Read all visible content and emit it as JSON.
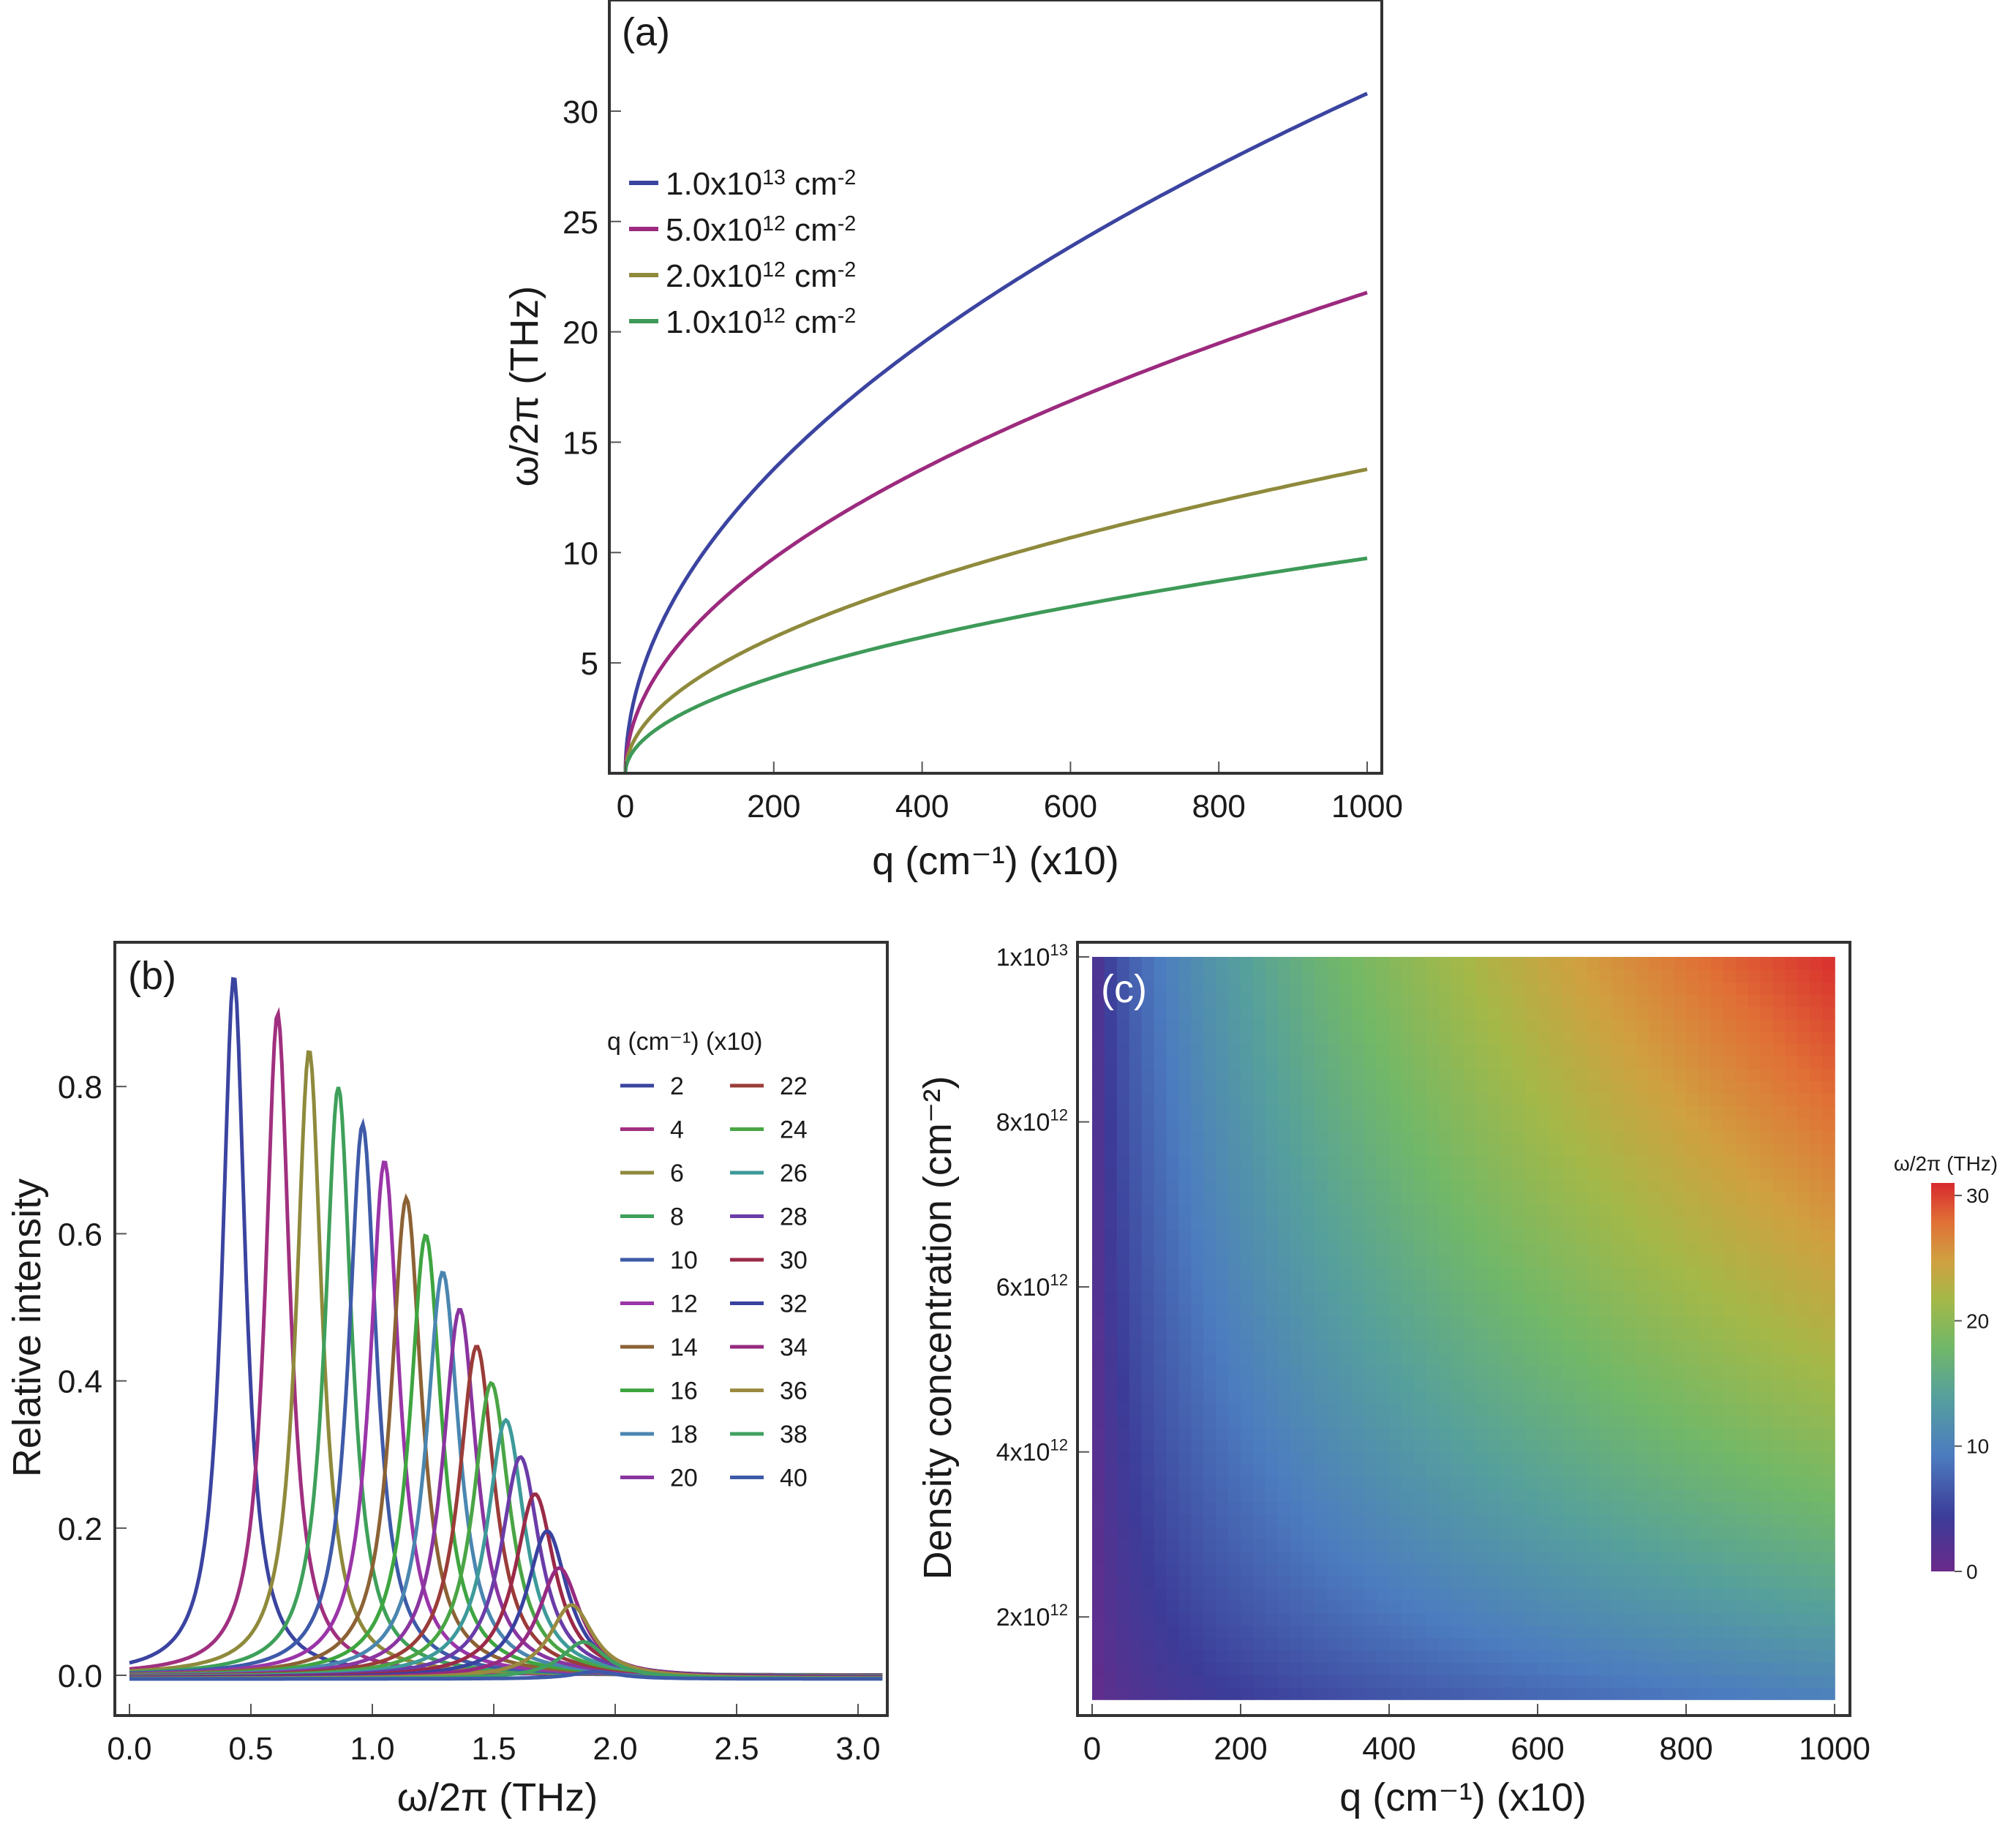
{
  "chart_data": [
    {
      "id": "a",
      "type": "line",
      "panel_label": "(a)",
      "title": "",
      "xlabel": "q (cm⁻¹) (x10)",
      "ylabel": "ω/2π (THz)",
      "xlim": [
        0,
        1000
      ],
      "ylim": [
        0,
        35
      ],
      "xticks": [
        0,
        200,
        400,
        600,
        800,
        1000
      ],
      "yticks": [
        5,
        10,
        15,
        20,
        25,
        30
      ],
      "legend_position": "upper-left",
      "model": "omega = 30.8 * sqrt(n / 1e13) * sqrt(q / 1000)",
      "x": [
        0,
        50,
        100,
        200,
        300,
        400,
        500,
        600,
        700,
        800,
        900,
        1000
      ],
      "series": [
        {
          "name": "1.0x10¹³ cm⁻²",
          "base": "1.0x10",
          "exp": "13",
          "unit": "cm",
          "unit_exp": "-2",
          "color": "#3b44a0",
          "density": 10000000000000.0,
          "values": [
            0,
            6.89,
            9.74,
            13.77,
            16.87,
            19.48,
            21.78,
            23.86,
            25.77,
            27.55,
            29.22,
            30.8
          ]
        },
        {
          "name": "5.0x10¹² cm⁻²",
          "base": "5.0x10",
          "exp": "12",
          "unit": "cm",
          "unit_exp": "-2",
          "color": "#9c2a7e",
          "density": 5000000000000.0,
          "values": [
            0,
            4.87,
            6.89,
            9.74,
            11.93,
            13.77,
            15.4,
            16.87,
            18.22,
            19.48,
            20.66,
            21.78
          ]
        },
        {
          "name": "2.0x10¹² cm⁻²",
          "base": "2.0x10",
          "exp": "12",
          "unit": "cm",
          "unit_exp": "-2",
          "color": "#8f8a3c",
          "density": 2000000000000.0,
          "values": [
            0,
            3.08,
            4.36,
            6.16,
            7.54,
            8.71,
            9.74,
            10.67,
            11.52,
            12.32,
            13.07,
            13.77
          ]
        },
        {
          "name": "1.0x10¹² cm⁻²",
          "base": "1.0x10",
          "exp": "12",
          "unit": "cm",
          "unit_exp": "-2",
          "color": "#3e9a58",
          "density": 1000000000000.0,
          "values": [
            0,
            2.18,
            3.08,
            4.36,
            5.33,
            6.16,
            6.89,
            7.54,
            8.15,
            8.71,
            9.24,
            9.74
          ]
        }
      ]
    },
    {
      "id": "b",
      "type": "line",
      "panel_label": "(b)",
      "title": "",
      "xlabel": "ω/2π (THz)",
      "ylabel": "Relative intensity",
      "xlim": [
        -0.06,
        3.12
      ],
      "ylim": [
        -0.05,
        0.99
      ],
      "xticks": [
        "0.0",
        "0.5",
        "1.0",
        "1.5",
        "2.0",
        "2.5",
        "3.0"
      ],
      "yticks": [
        "0.0",
        "0.2",
        "0.4",
        "0.6",
        "0.8"
      ],
      "legend_title": "q (cm⁻¹) (x10)",
      "legend_position": "right",
      "x_range": [
        0,
        3.1
      ],
      "peak_model": "Lorentzian; peak freq = 0.43*sqrt(q/2) THz; peak height = 0.95 - 0.05*(q/2 - 1)",
      "series": [
        {
          "name": "2",
          "q": 2,
          "color": "#3b44a0",
          "peak_x": 0.43,
          "peak_y": 0.95
        },
        {
          "name": "4",
          "q": 4,
          "color": "#a0307f",
          "peak_x": 0.61,
          "peak_y": 0.9
        },
        {
          "name": "6",
          "q": 6,
          "color": "#8f8a3c",
          "peak_x": 0.74,
          "peak_y": 0.85
        },
        {
          "name": "8",
          "q": 8,
          "color": "#3ea05a",
          "peak_x": 0.86,
          "peak_y": 0.8
        },
        {
          "name": "10",
          "q": 10,
          "color": "#3e5aa8",
          "peak_x": 0.96,
          "peak_y": 0.75
        },
        {
          "name": "12",
          "q": 12,
          "color": "#9a35a8",
          "peak_x": 1.05,
          "peak_y": 0.7
        },
        {
          "name": "14",
          "q": 14,
          "color": "#8c6235",
          "peak_x": 1.14,
          "peak_y": 0.65
        },
        {
          "name": "16",
          "q": 16,
          "color": "#3ea540",
          "peak_x": 1.22,
          "peak_y": 0.6
        },
        {
          "name": "18",
          "q": 18,
          "color": "#4a86b0",
          "peak_x": 1.29,
          "peak_y": 0.55
        },
        {
          "name": "20",
          "q": 20,
          "color": "#8a35a0",
          "peak_x": 1.36,
          "peak_y": 0.5
        },
        {
          "name": "22",
          "q": 22,
          "color": "#9a3c38",
          "peak_x": 1.43,
          "peak_y": 0.45
        },
        {
          "name": "24",
          "q": 24,
          "color": "#4aa545",
          "peak_x": 1.49,
          "peak_y": 0.4
        },
        {
          "name": "26",
          "q": 26,
          "color": "#3e9a9a",
          "peak_x": 1.55,
          "peak_y": 0.35
        },
        {
          "name": "28",
          "q": 28,
          "color": "#6a3ca8",
          "peak_x": 1.61,
          "peak_y": 0.3
        },
        {
          "name": "30",
          "q": 30,
          "color": "#9a2a48",
          "peak_x": 1.67,
          "peak_y": 0.25
        },
        {
          "name": "32",
          "q": 32,
          "color": "#3a42a0",
          "peak_x": 1.72,
          "peak_y": 0.2
        },
        {
          "name": "34",
          "q": 34,
          "color": "#962a80",
          "peak_x": 1.77,
          "peak_y": 0.15
        },
        {
          "name": "36",
          "q": 36,
          "color": "#9a8a40",
          "peak_x": 1.82,
          "peak_y": 0.1
        },
        {
          "name": "38",
          "q": 38,
          "color": "#40a060",
          "peak_x": 1.87,
          "peak_y": 0.05
        },
        {
          "name": "40",
          "q": 40,
          "color": "#3e5aa8",
          "peak_x": 1.92,
          "peak_y": 0.01
        }
      ]
    },
    {
      "id": "c",
      "type": "heatmap",
      "panel_label": "(c)",
      "title": "",
      "xlabel": "q (cm⁻¹) (x10)",
      "ylabel": "Density concentration (cm⁻²)",
      "x_range": [
        0,
        1000
      ],
      "y_range": [
        1000000000000.0,
        10000000000000.0
      ],
      "xticks": [
        0,
        200,
        400,
        600,
        800,
        1000
      ],
      "yticks": [
        {
          "value": 2000000000000.0,
          "base": "2x10",
          "exp": "12"
        },
        {
          "value": 4000000000000.0,
          "base": "4x10",
          "exp": "12"
        },
        {
          "value": 6000000000000.0,
          "base": "6x10",
          "exp": "12"
        },
        {
          "value": 8000000000000.0,
          "base": "8x10",
          "exp": "12"
        },
        {
          "value": 10000000000000.0,
          "base": "1x10",
          "exp": "13"
        }
      ],
      "value_model": "omega/2pi = 30.8 * sqrt(n/1e13) * sqrt(q/1000) THz",
      "colorbar": {
        "label": "ω/2π (THz)",
        "range": [
          0,
          31
        ],
        "ticks": [
          0,
          10,
          20,
          30
        ],
        "colormap": [
          {
            "at": 0.0,
            "color": "#6a2a8a"
          },
          {
            "at": 0.14,
            "color": "#3c3c98"
          },
          {
            "at": 0.3,
            "color": "#4c7cc0"
          },
          {
            "at": 0.45,
            "color": "#56a09c"
          },
          {
            "at": 0.58,
            "color": "#72b868"
          },
          {
            "at": 0.7,
            "color": "#a4b848"
          },
          {
            "at": 0.8,
            "color": "#d0a040"
          },
          {
            "at": 0.9,
            "color": "#e07036"
          },
          {
            "at": 1.0,
            "color": "#d82a2e"
          }
        ]
      }
    }
  ]
}
